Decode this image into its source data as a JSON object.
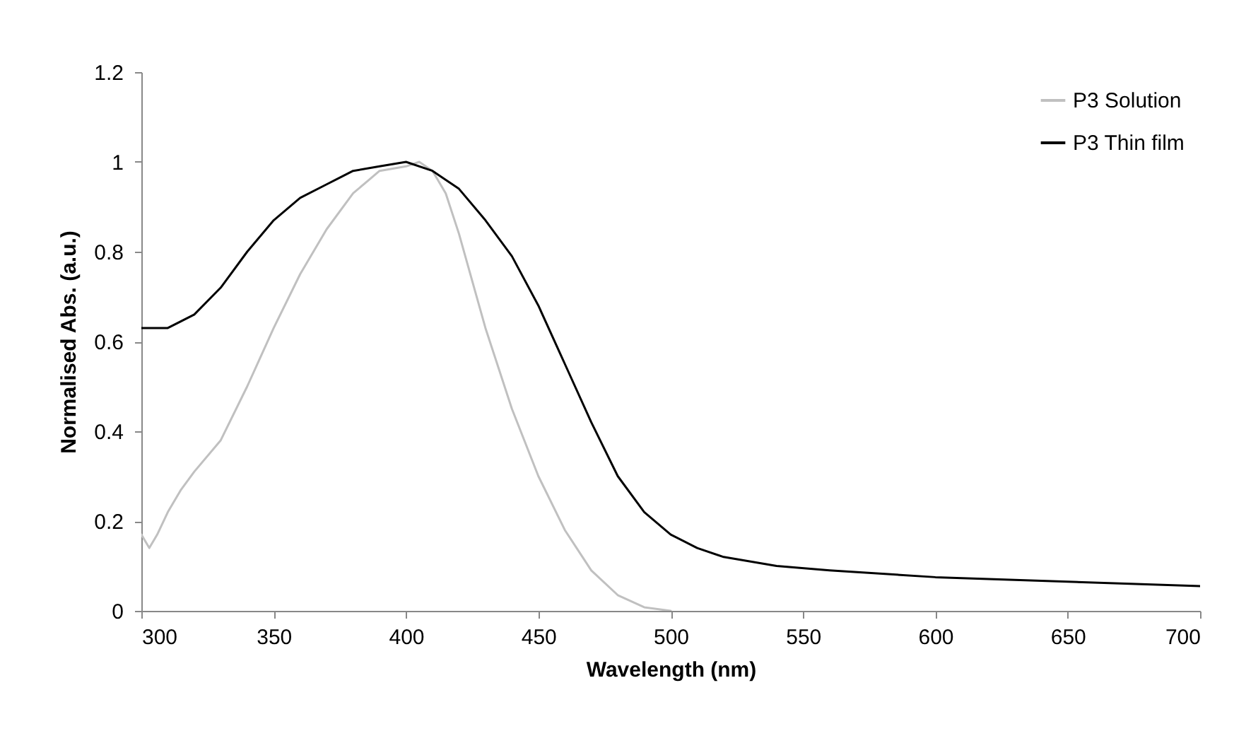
{
  "chart_data": {
    "type": "line",
    "xlabel": "Wavelength (nm)",
    "ylabel": "Normalised Abs. (a.u.)",
    "xlim": [
      300,
      700
    ],
    "xticks": [
      300,
      350,
      400,
      450,
      500,
      550,
      600,
      650,
      700
    ],
    "ylim": [
      0,
      1.2
    ],
    "yticks": [
      0,
      0.2,
      0.4,
      0.6,
      0.8,
      1,
      1.2
    ],
    "grid": false,
    "legend": "top right",
    "marker": "none",
    "line_style": "solid",
    "series": [
      {
        "name": "P3 Solution",
        "color": "#c0c0c0",
        "x": [
          300,
          303,
          306,
          310,
          315,
          320,
          330,
          340,
          350,
          360,
          370,
          380,
          390,
          400,
          405,
          410,
          415,
          420,
          430,
          440,
          450,
          460,
          470,
          480,
          490,
          500
        ],
        "values": [
          0.17,
          0.14,
          0.17,
          0.22,
          0.27,
          0.31,
          0.38,
          0.5,
          0.63,
          0.75,
          0.85,
          0.93,
          0.98,
          0.99,
          1.0,
          0.98,
          0.93,
          0.84,
          0.63,
          0.45,
          0.3,
          0.18,
          0.09,
          0.035,
          0.008,
          0
        ]
      },
      {
        "name": "P3 Thin film",
        "color": "#000000",
        "x": [
          300,
          310,
          320,
          330,
          340,
          350,
          360,
          370,
          380,
          390,
          400,
          410,
          420,
          430,
          440,
          450,
          460,
          470,
          480,
          490,
          500,
          510,
          520,
          540,
          560,
          600,
          650,
          700
        ],
        "values": [
          0.63,
          0.63,
          0.66,
          0.72,
          0.8,
          0.87,
          0.92,
          0.95,
          0.98,
          0.99,
          1.0,
          0.98,
          0.94,
          0.87,
          0.79,
          0.68,
          0.55,
          0.42,
          0.3,
          0.22,
          0.17,
          0.14,
          0.12,
          0.1,
          0.09,
          0.075,
          0.065,
          0.055
        ]
      }
    ]
  }
}
